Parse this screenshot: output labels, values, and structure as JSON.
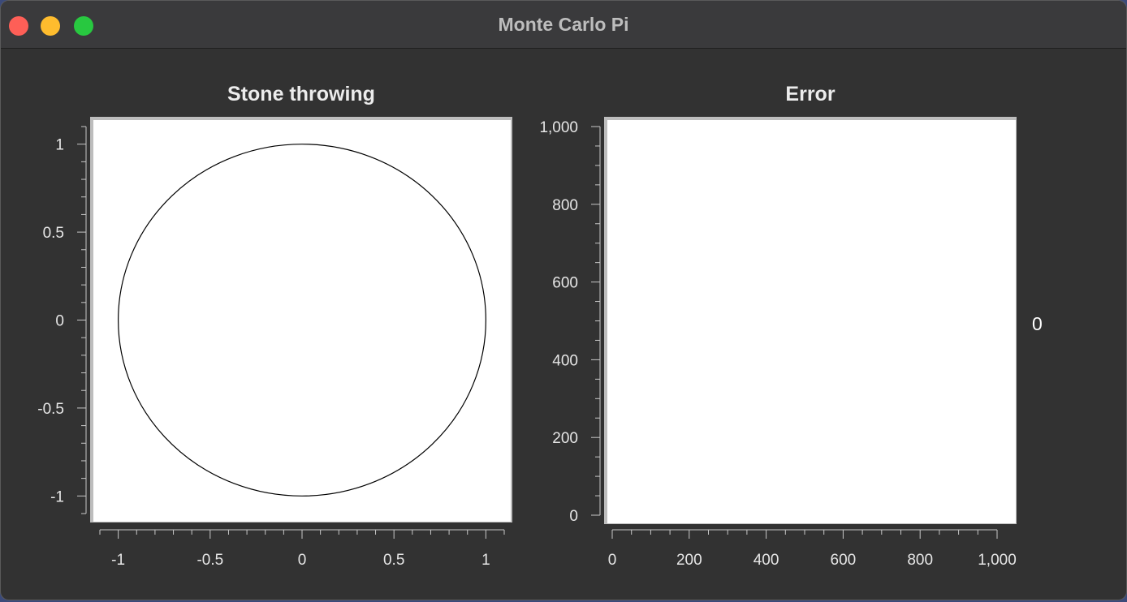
{
  "window": {
    "title": "Monte Carlo Pi"
  },
  "plots": {
    "stone": {
      "title": "Stone throwing"
    },
    "error": {
      "title": "Error"
    }
  },
  "side_value": "0",
  "chart_data": [
    {
      "type": "scatter",
      "title": "Stone throwing",
      "xlim": [
        -1.1,
        1.1
      ],
      "ylim": [
        -1.1,
        1.1
      ],
      "x_ticks": [
        -1,
        -0.5,
        0,
        0.5,
        1
      ],
      "x_tick_labels": [
        "-1",
        "-0.5",
        "0",
        "0.5",
        "1"
      ],
      "y_ticks": [
        1,
        0.5,
        0,
        -0.5,
        -1
      ],
      "y_tick_labels": [
        "1",
        "0.5",
        "0",
        "-0.5",
        "-1"
      ],
      "shapes": [
        {
          "shape": "circle",
          "center": [
            0,
            0
          ],
          "radius": 1
        }
      ],
      "points": []
    },
    {
      "type": "line",
      "title": "Error",
      "xlim": [
        0,
        1000
      ],
      "ylim": [
        0,
        1000
      ],
      "x_ticks": [
        0,
        200,
        400,
        600,
        800,
        1000
      ],
      "x_tick_labels": [
        "0",
        "200",
        "400",
        "600",
        "800",
        "1,000"
      ],
      "y_ticks": [
        1000,
        800,
        600,
        400,
        200,
        0
      ],
      "y_tick_labels": [
        "1,000",
        "800",
        "600",
        "400",
        "200",
        "0"
      ],
      "series": []
    }
  ]
}
